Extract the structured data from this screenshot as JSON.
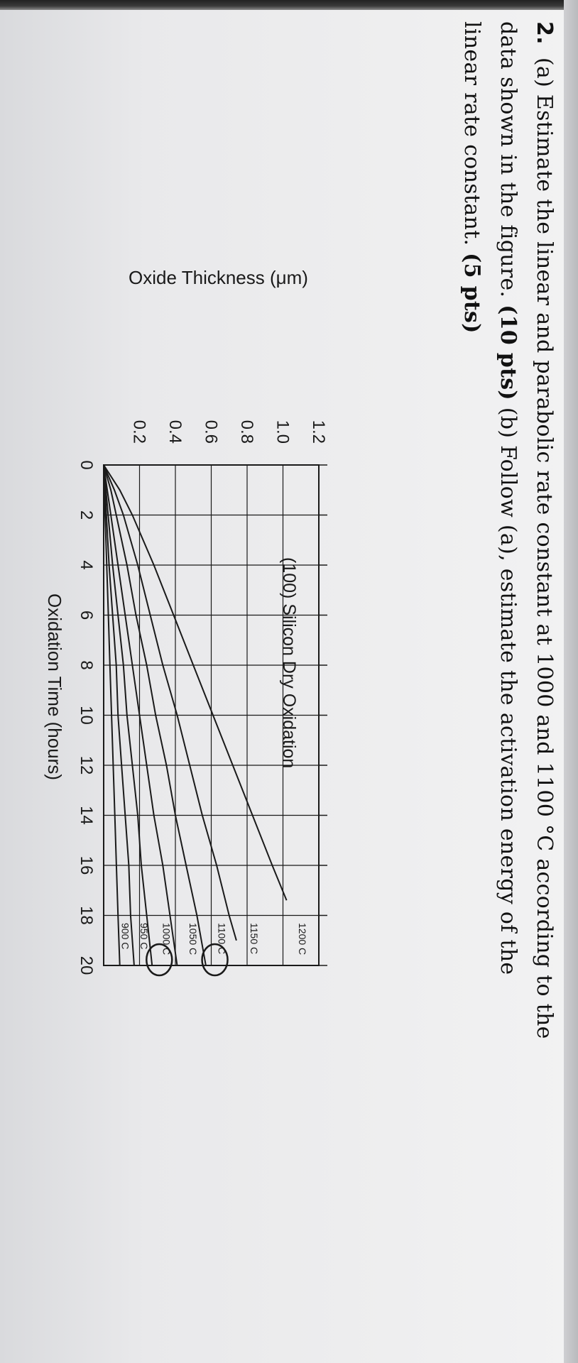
{
  "question": {
    "number": "2.",
    "line1": "(a) Estimate the linear and parabolic rate constant at 1000 and 1100 °C according to the",
    "line2a": "data shown in the figure. ",
    "line2_pts": "(10 pts)",
    "line2b": " (b) Follow (a), estimate the activation energy of the",
    "line3a": "linear rate constant. ",
    "line3_pts": "(5 pts)"
  },
  "colors": {
    "ink": "#1a1a1a",
    "paper": "#ececee",
    "bezel": "#2a2a2a"
  },
  "chart_data": {
    "type": "line",
    "title": "(100) Silicon Dry Oxidation",
    "xlabel": "Oxidation Time (hours)",
    "ylabel": "Oxide Thickness (μm)",
    "xlim": [
      0,
      20
    ],
    "ylim": [
      0,
      1.2
    ],
    "x_ticks": [
      "0",
      "2",
      "4",
      "6",
      "8",
      "10",
      "12",
      "14",
      "16",
      "18",
      "20"
    ],
    "y_ticks": [
      "0.2",
      "0.4",
      "0.6",
      "0.8",
      "1.0",
      "1.2"
    ],
    "grid": true,
    "series": [
      {
        "name": "1200 C",
        "x": [
          0,
          1,
          2,
          4,
          6,
          8,
          10,
          12,
          14,
          16,
          17.4
        ],
        "y": [
          0,
          0.09,
          0.16,
          0.28,
          0.39,
          0.5,
          0.61,
          0.72,
          0.83,
          0.94,
          1.02
        ]
      },
      {
        "name": "1150 C",
        "x": [
          0,
          1,
          2,
          4,
          6,
          8,
          10,
          12,
          14,
          16,
          18,
          19
        ],
        "y": [
          0,
          0.06,
          0.11,
          0.19,
          0.26,
          0.33,
          0.41,
          0.48,
          0.55,
          0.63,
          0.7,
          0.74
        ]
      },
      {
        "name": "1100 C",
        "x": [
          0,
          1,
          2,
          4,
          6,
          8,
          10,
          12,
          14,
          16,
          18,
          20
        ],
        "y": [
          0,
          0.04,
          0.07,
          0.13,
          0.18,
          0.24,
          0.29,
          0.35,
          0.4,
          0.46,
          0.52,
          0.57
        ]
      },
      {
        "name": "1050 C",
        "x": [
          0,
          2,
          4,
          6,
          8,
          10,
          12,
          14,
          16,
          18,
          20
        ],
        "y": [
          0,
          0.04,
          0.08,
          0.12,
          0.16,
          0.2,
          0.24,
          0.28,
          0.33,
          0.37,
          0.41
        ]
      },
      {
        "name": "1000 C",
        "x": [
          0,
          2,
          4,
          6,
          8,
          10,
          12,
          14,
          16,
          18,
          20
        ],
        "y": [
          0,
          0.025,
          0.05,
          0.08,
          0.11,
          0.13,
          0.16,
          0.19,
          0.21,
          0.24,
          0.27
        ]
      },
      {
        "name": "950 C",
        "x": [
          0,
          2,
          4,
          6,
          8,
          10,
          12,
          14,
          16,
          18,
          20
        ],
        "y": [
          0,
          0.015,
          0.03,
          0.05,
          0.07,
          0.08,
          0.1,
          0.12,
          0.14,
          0.15,
          0.17
        ]
      },
      {
        "name": "900 C",
        "x": [
          0,
          2,
          4,
          6,
          8,
          10,
          12,
          14,
          16,
          18,
          20
        ],
        "y": [
          0,
          0.008,
          0.017,
          0.026,
          0.035,
          0.044,
          0.053,
          0.062,
          0.071,
          0.08,
          0.09
        ]
      }
    ],
    "curve_labels": [
      "1200 C",
      "1150 C",
      "1100 C",
      "1050 C",
      "1000 C",
      "950 C",
      "900 C"
    ]
  }
}
